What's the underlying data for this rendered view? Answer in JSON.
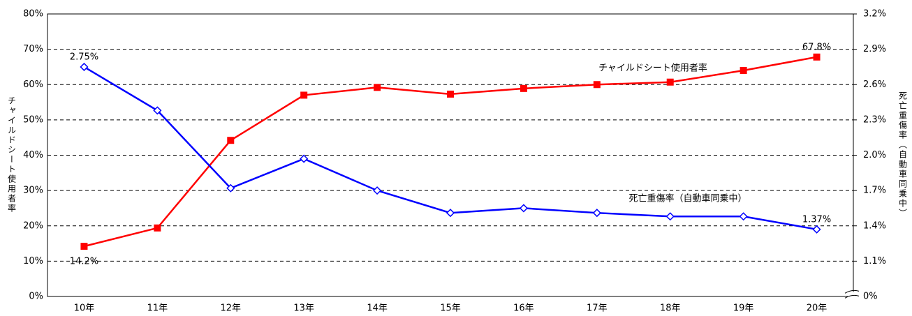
{
  "chart_data": {
    "type": "line",
    "categories": [
      "10年",
      "11年",
      "12年",
      "13年",
      "14年",
      "15年",
      "16年",
      "17年",
      "18年",
      "19年",
      "20年"
    ],
    "y_label": "チャイルドシート使用者率",
    "y2_label": "死亡重傷率（自動車同乗中）",
    "ylim": [
      0,
      80
    ],
    "yticks": [
      {
        "value": 0,
        "label": "0%"
      },
      {
        "value": 10,
        "label": "10%"
      },
      {
        "value": 20,
        "label": "20%"
      },
      {
        "value": 30,
        "label": "30%"
      },
      {
        "value": 40,
        "label": "40%"
      },
      {
        "value": 50,
        "label": "50%"
      },
      {
        "value": 60,
        "label": "60%"
      },
      {
        "value": 70,
        "label": "70%"
      },
      {
        "value": 80,
        "label": "80%"
      }
    ],
    "y2lim": [
      0.8,
      3.2
    ],
    "y2_break": true,
    "y2ticks": [
      {
        "value": 0,
        "label": "0%"
      },
      {
        "value": 1.1,
        "label": "1.1%"
      },
      {
        "value": 1.4,
        "label": "1.4%"
      },
      {
        "value": 1.7,
        "label": "1.7%"
      },
      {
        "value": 2.0,
        "label": "2.0%"
      },
      {
        "value": 2.3,
        "label": "2.3%"
      },
      {
        "value": 2.6,
        "label": "2.6%"
      },
      {
        "value": 2.9,
        "label": "2.9%"
      },
      {
        "value": 3.2,
        "label": "3.2%"
      }
    ],
    "grid": true,
    "series": [
      {
        "name": "チャイルドシート使用者率",
        "color": "#ff0000",
        "marker": "square",
        "values": [
          14.2,
          19.4,
          44.2,
          57.0,
          59.2,
          57.3,
          58.9,
          60.0,
          60.7,
          64.0,
          67.8
        ],
        "value_labels": [
          "14.2%",
          null,
          null,
          null,
          null,
          null,
          null,
          null,
          null,
          null,
          "67.8%"
        ]
      },
      {
        "name": "死亡重傷率（自動車同乗中）",
        "color": "#0000ff",
        "marker": "diamond",
        "axis": "y2",
        "values": [
          2.75,
          2.38,
          1.72,
          1.97,
          1.7,
          1.51,
          1.55,
          1.51,
          1.48,
          1.48,
          1.37
        ],
        "value_labels": [
          "2.75%",
          null,
          null,
          null,
          null,
          null,
          null,
          null,
          null,
          null,
          "1.37%"
        ]
      }
    ]
  }
}
